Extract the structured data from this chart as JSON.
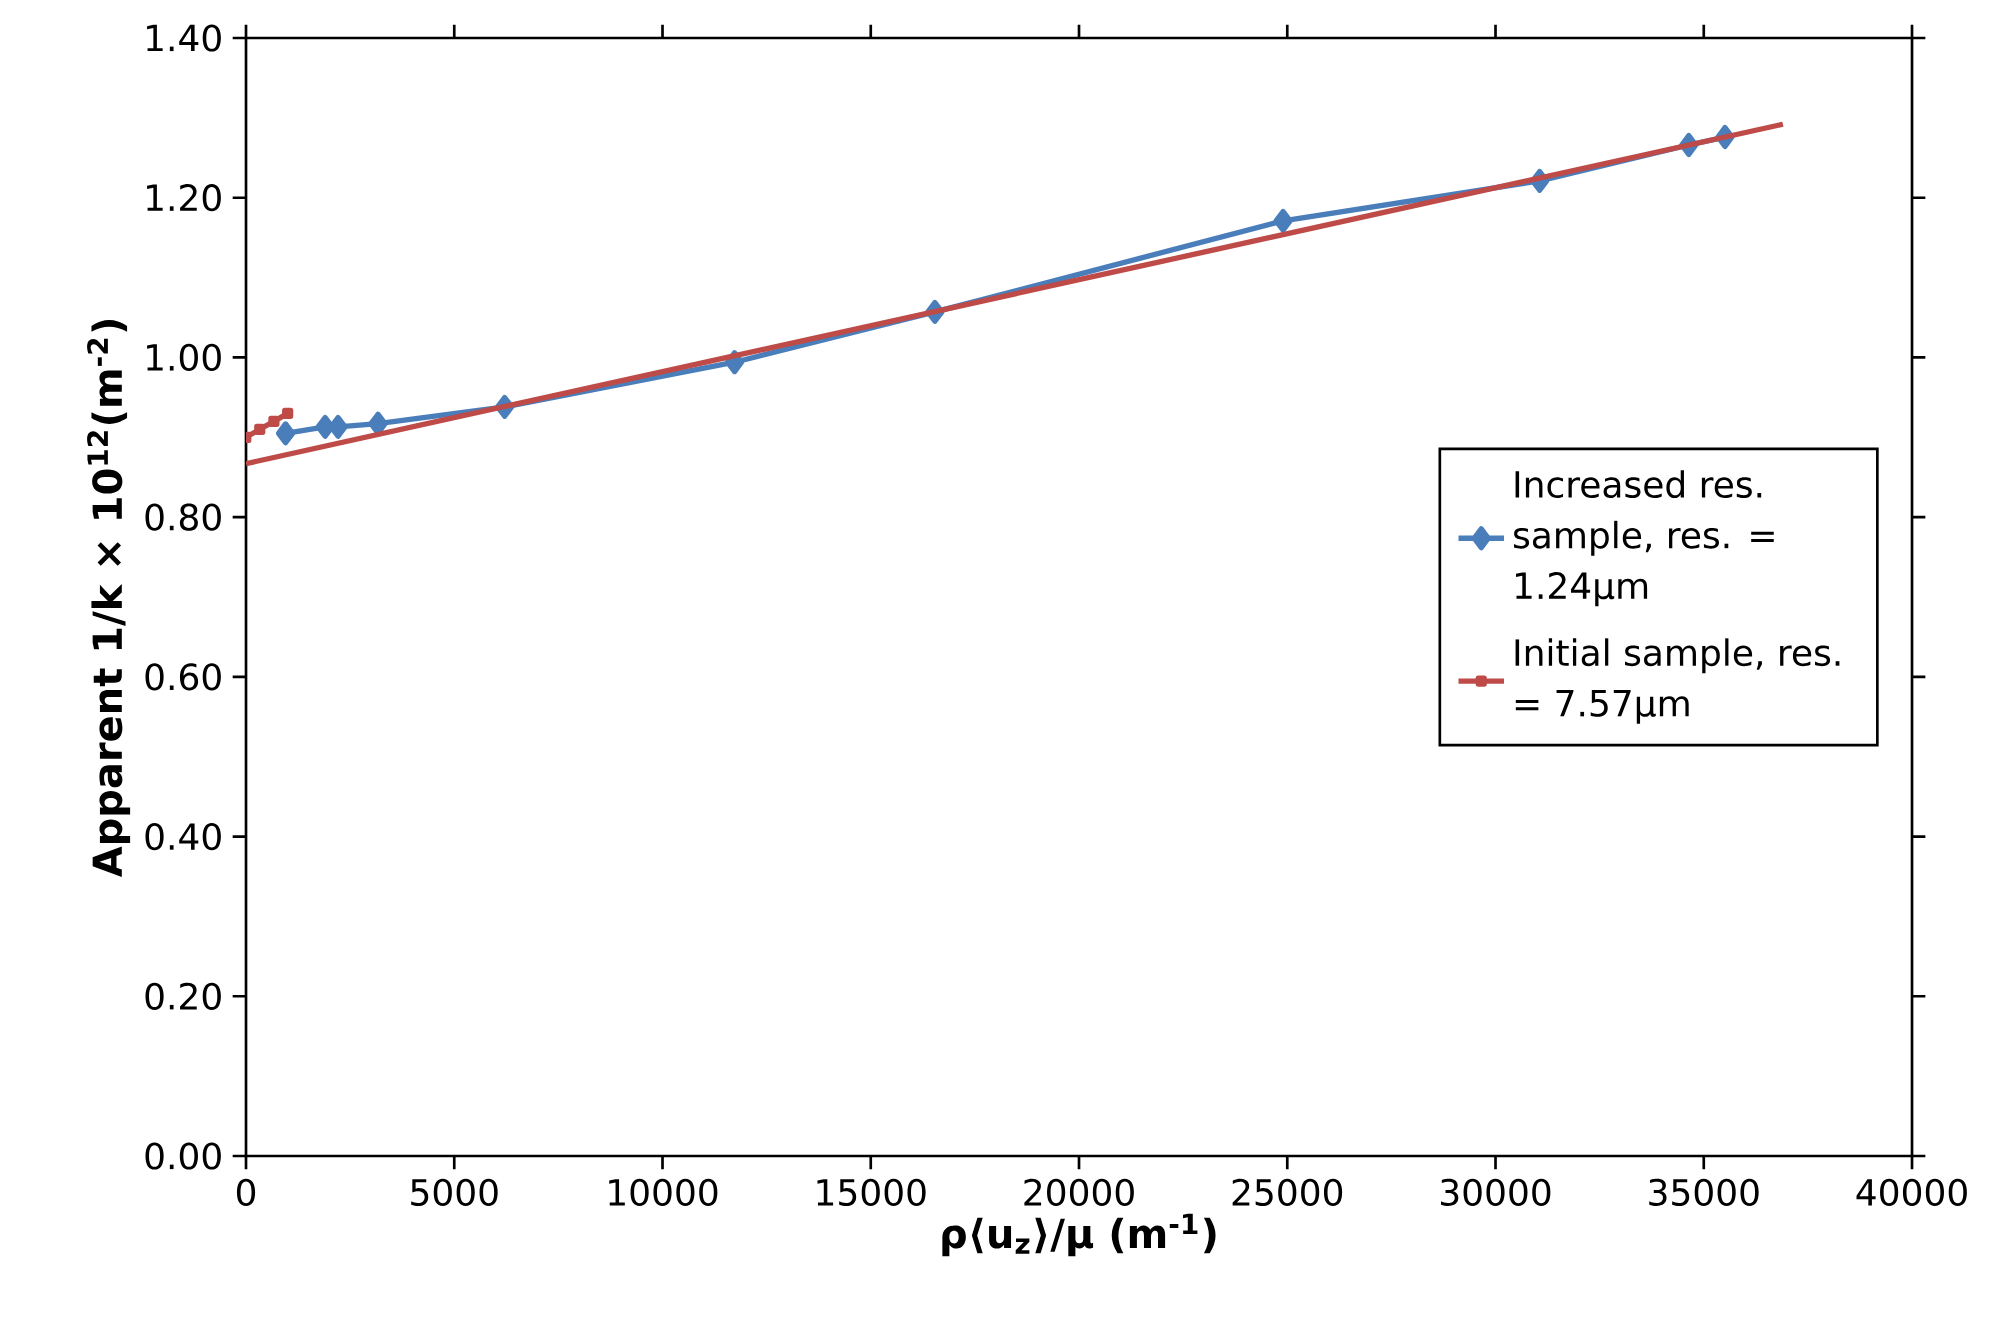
{
  "chart_data": {
    "type": "line",
    "xlabel": "ρ⟨u$_{z}$⟩/μ (m$^{-1}$)",
    "ylabel": "Apparent   1/k × 10$^{12}$(m$^{-2}$)",
    "xlim": [
      0,
      40000
    ],
    "ylim": [
      0,
      1.4
    ],
    "xticks": [
      0,
      5000,
      10000,
      15000,
      20000,
      25000,
      30000,
      35000,
      40000
    ],
    "yticks": [
      {
        "value": 0,
        "label": "0.00"
      },
      {
        "value": 0.2,
        "label": "0.20"
      },
      {
        "value": 0.4,
        "label": "0.40"
      },
      {
        "value": 0.6,
        "label": "0.60"
      },
      {
        "value": 0.8,
        "label": "0.80"
      },
      {
        "value": 1.0,
        "label": "1.00"
      },
      {
        "value": 1.2,
        "label": "1.20"
      },
      {
        "value": 1.4,
        "label": "1.40"
      }
    ],
    "grid": false,
    "legend": "right",
    "line_style": "solid",
    "series": [
      {
        "name": "Increased res. sample, res. = 1.24µm",
        "color": "#4a7ebb",
        "marker": "diamond",
        "x": [
          950,
          1900,
          2210,
          3170,
          6210,
          11730,
          16540,
          24900,
          31060,
          34640,
          35510
        ],
        "values": [
          0.905,
          0.913,
          0.913,
          0.917,
          0.938,
          0.994,
          1.057,
          1.171,
          1.221,
          1.266,
          1.276
        ]
      },
      {
        "name": "Initial sample, res. = 7.57µm",
        "color": "#be4b48",
        "marker": "square",
        "x": [
          0,
          330,
          670,
          1000
        ],
        "values": [
          0.9,
          0.91,
          0.92,
          0.93
        ]
      },
      {
        "type": "line",
        "color": "#be4b48",
        "marker": "none",
        "x": [
          0,
          36900
        ],
        "values": [
          0.867,
          1.292
        ]
      }
    ]
  }
}
